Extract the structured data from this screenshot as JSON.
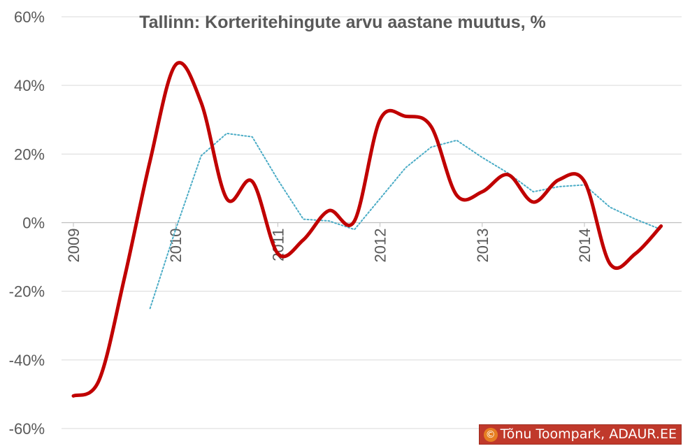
{
  "chart_data": {
    "type": "line",
    "title": "Tallinn: Korteritehingute arvu aastane muutus, %",
    "xlabel": "",
    "ylabel": "",
    "x_tick_labels": [
      "2009",
      "2010",
      "2011",
      "2012",
      "2013",
      "2014"
    ],
    "x_tick_positions": [
      2009,
      2010,
      2011,
      2012,
      2013,
      2014
    ],
    "xlim": [
      2009,
      2015
    ],
    "ylim": [
      -60,
      60
    ],
    "y_ticks": [
      -60,
      -40,
      -20,
      0,
      20,
      40,
      60
    ],
    "y_tick_labels": [
      "-60%",
      "-40%",
      "-20%",
      "0%",
      "20%",
      "40%",
      "60%"
    ],
    "grid": true,
    "legend": "none",
    "series": [
      {
        "color": "#c00000",
        "style": "solid-smooth",
        "x": [
          2009.0,
          2009.25,
          2009.5,
          2009.75,
          2010.0,
          2010.25,
          2010.5,
          2010.75,
          2011.0,
          2011.25,
          2011.5,
          2011.75,
          2012.0,
          2012.25,
          2012.5,
          2012.75,
          2013.0,
          2013.25,
          2013.5,
          2013.75,
          2014.0,
          2014.25,
          2014.5,
          2014.75
        ],
        "values": [
          -50.5,
          -46,
          -16,
          18,
          46,
          35,
          7,
          12,
          -9,
          -5,
          3.5,
          0.5,
          30,
          31,
          28,
          8,
          9,
          14,
          6,
          12.5,
          12,
          -12,
          -9,
          -1
        ]
      },
      {
        "color": "#4bacc6",
        "style": "dotted",
        "x": [
          2009.75,
          2010.0,
          2010.25,
          2010.5,
          2010.75,
          2011.0,
          2011.25,
          2011.5,
          2011.75,
          2012.0,
          2012.25,
          2012.5,
          2012.75,
          2013.0,
          2013.25,
          2013.5,
          2013.75,
          2014.0,
          2014.25,
          2014.5,
          2014.75
        ],
        "values": [
          -25,
          -2,
          19.5,
          26,
          25,
          12.5,
          1,
          0.5,
          -2,
          7,
          16,
          22,
          24,
          19,
          14.5,
          9,
          10.5,
          11,
          4.5,
          1,
          -2
        ]
      }
    ]
  },
  "credit": {
    "symbol": "©",
    "text": "Tõnu Toompark, ADAUR.EE"
  }
}
